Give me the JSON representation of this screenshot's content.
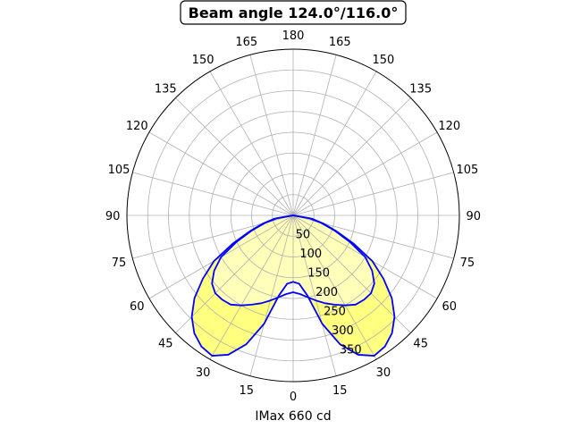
{
  "chart_data": {
    "type": "polar",
    "title": "Beam angle 124.0°/116.0°",
    "xlabel": "IMax 660 cd",
    "angle_tick_labels": [
      {
        "angle": 0,
        "label": "0"
      },
      {
        "angle": 15,
        "label": "15"
      },
      {
        "angle": 30,
        "label": "30"
      },
      {
        "angle": 45,
        "label": "45"
      },
      {
        "angle": 60,
        "label": "60"
      },
      {
        "angle": 75,
        "label": "75"
      },
      {
        "angle": 90,
        "label": "90"
      },
      {
        "angle": 105,
        "label": "105"
      },
      {
        "angle": 120,
        "label": "120"
      },
      {
        "angle": 135,
        "label": "135"
      },
      {
        "angle": 150,
        "label": "150"
      },
      {
        "angle": 165,
        "label": "165"
      },
      {
        "angle": 180,
        "label": "180"
      },
      {
        "angle": -165,
        "label": "165"
      },
      {
        "angle": -150,
        "label": "150"
      },
      {
        "angle": -135,
        "label": "135"
      },
      {
        "angle": -120,
        "label": "120"
      },
      {
        "angle": -105,
        "label": "105"
      },
      {
        "angle": -90,
        "label": "90"
      },
      {
        "angle": -75,
        "label": "75"
      },
      {
        "angle": -60,
        "label": "60"
      },
      {
        "angle": -45,
        "label": "45"
      },
      {
        "angle": -30,
        "label": "30"
      },
      {
        "angle": -15,
        "label": "15"
      }
    ],
    "radial_ticks": [
      50,
      100,
      150,
      200,
      250,
      300,
      350
    ],
    "rmax": 400,
    "grid": true,
    "series": [
      {
        "color": "#0000ff",
        "fill": "#ffff80",
        "points": [
          [
            -90,
            0
          ],
          [
            -80,
            45
          ],
          [
            -75,
            75
          ],
          [
            -70,
            110
          ],
          [
            -65,
            160
          ],
          [
            -60,
            220
          ],
          [
            -55,
            265
          ],
          [
            -50,
            310
          ],
          [
            -45,
            345
          ],
          [
            -40,
            370
          ],
          [
            -35,
            385
          ],
          [
            -30,
            390
          ],
          [
            -25,
            370
          ],
          [
            -20,
            330
          ],
          [
            -15,
            270
          ],
          [
            -10,
            195
          ],
          [
            -5,
            165
          ],
          [
            0,
            160
          ],
          [
            5,
            165
          ],
          [
            10,
            195
          ],
          [
            15,
            270
          ],
          [
            20,
            330
          ],
          [
            25,
            370
          ],
          [
            30,
            390
          ],
          [
            35,
            385
          ],
          [
            40,
            370
          ],
          [
            45,
            345
          ],
          [
            50,
            310
          ],
          [
            55,
            265
          ],
          [
            60,
            220
          ],
          [
            65,
            160
          ],
          [
            70,
            110
          ],
          [
            75,
            75
          ],
          [
            80,
            45
          ],
          [
            90,
            0
          ]
        ]
      },
      {
        "color": "#0000ff",
        "fill": "#ffffff",
        "points": [
          [
            -90,
            0
          ],
          [
            -80,
            40
          ],
          [
            -75,
            70
          ],
          [
            -70,
            105
          ],
          [
            -65,
            150
          ],
          [
            -60,
            200
          ],
          [
            -55,
            232
          ],
          [
            -50,
            255
          ],
          [
            -45,
            265
          ],
          [
            -40,
            265
          ],
          [
            -35,
            262
          ],
          [
            -30,
            250
          ],
          [
            -25,
            237
          ],
          [
            -20,
            225
          ],
          [
            -15,
            212
          ],
          [
            -10,
            200
          ],
          [
            -5,
            190
          ],
          [
            0,
            185
          ],
          [
            5,
            190
          ],
          [
            10,
            200
          ],
          [
            15,
            212
          ],
          [
            20,
            225
          ],
          [
            25,
            237
          ],
          [
            30,
            250
          ],
          [
            35,
            262
          ],
          [
            40,
            265
          ],
          [
            45,
            265
          ],
          [
            50,
            255
          ],
          [
            55,
            232
          ],
          [
            60,
            200
          ],
          [
            65,
            150
          ],
          [
            70,
            105
          ],
          [
            75,
            70
          ],
          [
            80,
            40
          ],
          [
            90,
            0
          ]
        ]
      }
    ]
  }
}
